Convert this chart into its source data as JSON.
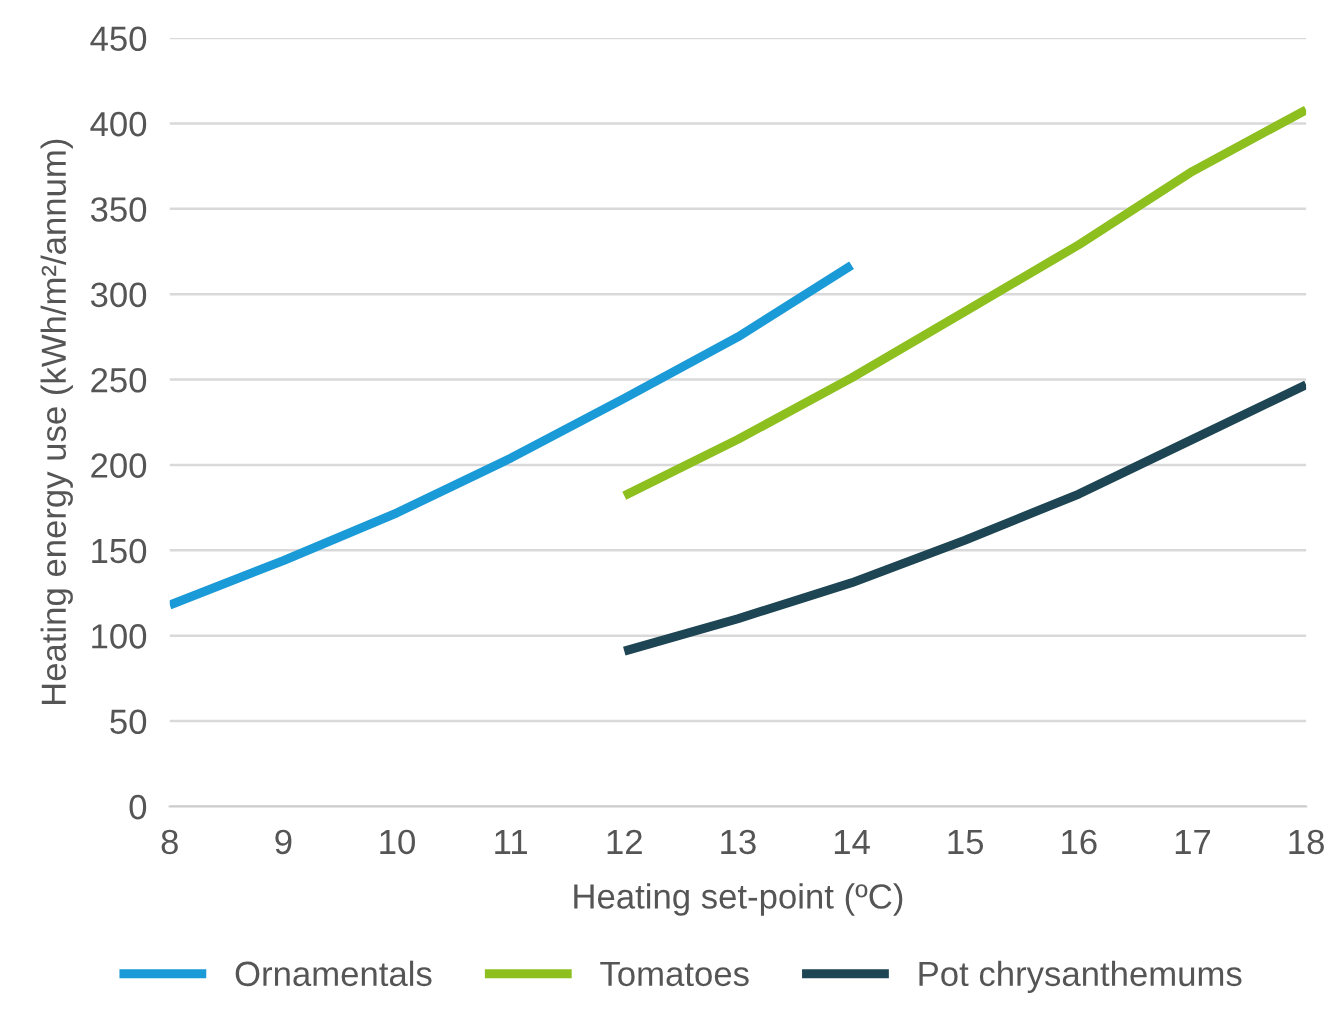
{
  "chart_data": {
    "type": "line",
    "xlabel": "Heating set-point (ºC)",
    "ylabel": "Heating energy use (kWh/m²/annum)",
    "xlim": [
      8,
      18
    ],
    "xticks": [
      8,
      9,
      10,
      11,
      12,
      13,
      14,
      15,
      16,
      17,
      18
    ],
    "ylim": [
      0,
      450
    ],
    "yticks": [
      0,
      50,
      100,
      150,
      200,
      250,
      300,
      350,
      400,
      450
    ],
    "grid": "y",
    "legend": "bottom",
    "marker": "none",
    "line_style": "solid",
    "series": [
      {
        "name": "Ornamentals",
        "color": "#1a9ad6",
        "x": [
          8,
          9,
          10,
          11,
          12,
          13,
          14
        ],
        "values": [
          118,
          144,
          172,
          204,
          239,
          275,
          317
        ]
      },
      {
        "name": "Tomatoes",
        "color": "#8dc01f",
        "x": [
          12,
          13,
          14,
          15,
          16,
          17,
          18
        ],
        "values": [
          182,
          215,
          251,
          290,
          329,
          372,
          408
        ]
      },
      {
        "name": "Pot chrysanthemums",
        "color": "#1d4553",
        "x": [
          12,
          13,
          14,
          15,
          16,
          17,
          18
        ],
        "values": [
          91,
          110,
          131,
          156,
          183,
          215,
          247
        ]
      }
    ]
  }
}
